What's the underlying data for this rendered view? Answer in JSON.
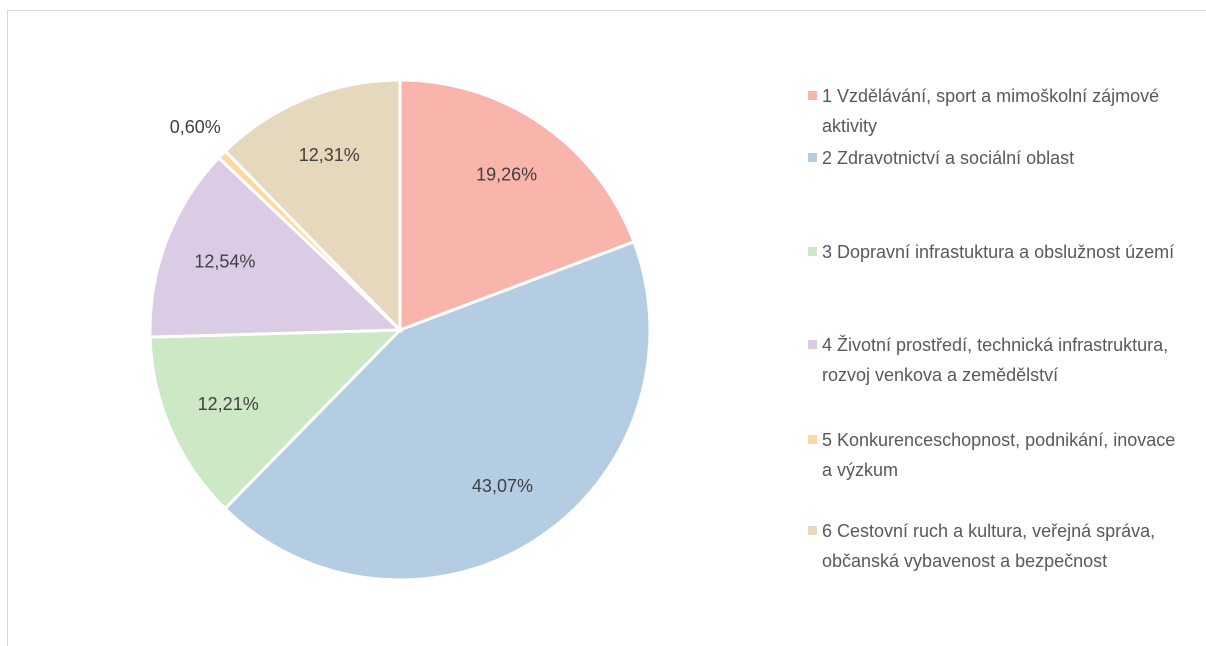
{
  "chart_data": {
    "type": "pie",
    "categories": [
      "1 Vzdělávání, sport a mimoškolní zájmové aktivity",
      "2 Zdravotnictví a sociální oblast",
      "3 Dopravní infrastuktura a obslužnost území",
      "4 Životní prostředí, technická infrastruktura, rozvoj venkova a zemědělství",
      "5 Konkurenceschopnost, podnikání, inovace a výzkum",
      "6 Cestovní ruch a kultura, veřejná správa, občanská vybavenost a bezpečnost"
    ],
    "values": [
      19.26,
      43.07,
      12.21,
      12.54,
      0.6,
      12.31
    ],
    "value_labels": [
      "19,26%",
      "43,07%",
      "12,21%",
      "12,54%",
      "0,60%",
      "12,31%"
    ],
    "colors": [
      "#f9b4ac",
      "#b4cde3",
      "#cce8c4",
      "#dccbe4",
      "#fcd9a0",
      "#e6d8bd"
    ],
    "legend": "right"
  }
}
